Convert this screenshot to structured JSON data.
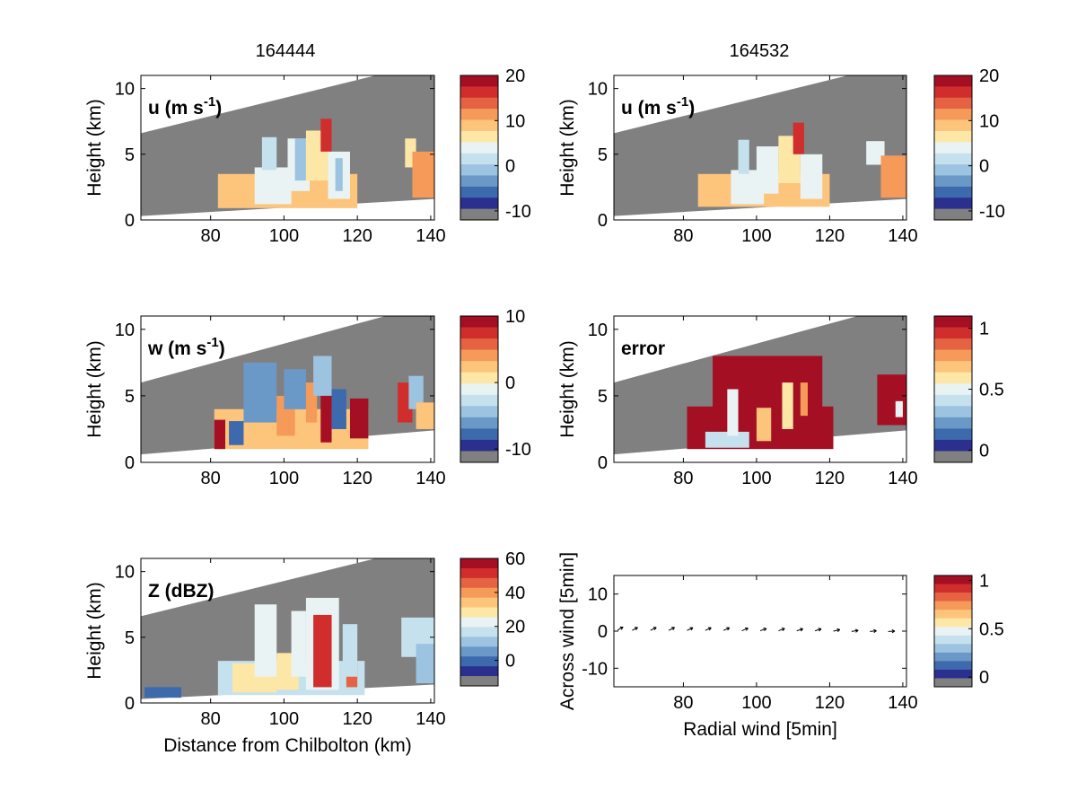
{
  "figure": {
    "column_titles": [
      "164444",
      "164532"
    ],
    "colors": {
      "background_gray": "#808080",
      "palette": [
        "#2b2f8e",
        "#3d69ad",
        "#6a99c8",
        "#9cc3df",
        "#c6e1ee",
        "#eaf3f3",
        "#fde7a6",
        "#fdc47c",
        "#f69a5a",
        "#e56342",
        "#cf2e2c",
        "#a50f23"
      ]
    }
  },
  "chart_data": [
    {
      "id": "u-164444",
      "type": "heatmap",
      "column_title": "164444",
      "panel_label": "u (m s-1)",
      "label_base": "u (m s",
      "label_sup": "-1",
      "label_end": ")",
      "xlabel": "",
      "ylabel": "Height (km)",
      "xlim": [
        61,
        141
      ],
      "ylim": [
        0,
        11
      ],
      "xticks": [
        80,
        100,
        120,
        140
      ],
      "yticks": [
        0,
        5,
        10
      ],
      "colorbar": {
        "range": [
          -12,
          20
        ],
        "ticks": [
          20,
          10,
          0,
          -10
        ],
        "bottom_gray": true
      },
      "beam_top": [
        [
          61,
          6.6
        ],
        [
          141,
          12.1
        ]
      ],
      "beam_bottom": [
        [
          61,
          0.3
        ],
        [
          141,
          1.6
        ]
      ],
      "field": "u",
      "cells": [
        {
          "x": 82,
          "y": 0.9,
          "w": 38,
          "h": 2.6,
          "value": 8
        },
        {
          "x": 92,
          "y": 1.2,
          "w": 10,
          "h": 2.8,
          "value": 3
        },
        {
          "x": 94,
          "y": 3.8,
          "w": 4,
          "h": 2.5,
          "value": 0
        },
        {
          "x": 101,
          "y": 2.2,
          "w": 6,
          "h": 4.0,
          "value": 2
        },
        {
          "x": 103,
          "y": 3.0,
          "w": 3,
          "h": 3.2,
          "value": -2
        },
        {
          "x": 106,
          "y": 3.0,
          "w": 6,
          "h": 3.8,
          "value": 5
        },
        {
          "x": 110,
          "y": 5.2,
          "w": 3,
          "h": 2.5,
          "value": 17
        },
        {
          "x": 112,
          "y": 1.6,
          "w": 6,
          "h": 3.6,
          "value": 2
        },
        {
          "x": 114,
          "y": 2.2,
          "w": 2,
          "h": 2.5,
          "value": -4
        },
        {
          "x": 133,
          "y": 4.0,
          "w": 3,
          "h": 2.2,
          "value": 4
        },
        {
          "x": 135,
          "y": 1.7,
          "w": 6,
          "h": 3.5,
          "value": 11
        }
      ]
    },
    {
      "id": "u-164532",
      "type": "heatmap",
      "column_title": "164532",
      "panel_label": "u (m s-1)",
      "label_base": "u (m s",
      "label_sup": "-1",
      "label_end": ")",
      "xlabel": "",
      "ylabel": "Height (km)",
      "xlim": [
        61,
        141
      ],
      "ylim": [
        0,
        11
      ],
      "xticks": [
        80,
        100,
        120,
        140
      ],
      "yticks": [
        0,
        5,
        10
      ],
      "colorbar": {
        "range": [
          -12,
          20
        ],
        "ticks": [
          20,
          10,
          0,
          -10
        ],
        "bottom_gray": true
      },
      "beam_top": [
        [
          61,
          6.6
        ],
        [
          141,
          12.1
        ]
      ],
      "beam_bottom": [
        [
          61,
          0.3
        ],
        [
          141,
          1.6
        ]
      ],
      "field": "u",
      "cells": [
        {
          "x": 84,
          "y": 1.0,
          "w": 36,
          "h": 2.5,
          "value": 8
        },
        {
          "x": 93,
          "y": 1.2,
          "w": 9,
          "h": 2.6,
          "value": 3
        },
        {
          "x": 95,
          "y": 3.5,
          "w": 3,
          "h": 2.6,
          "value": 0
        },
        {
          "x": 100,
          "y": 2.0,
          "w": 6,
          "h": 3.6,
          "value": 2
        },
        {
          "x": 106,
          "y": 2.8,
          "w": 6,
          "h": 3.6,
          "value": 5
        },
        {
          "x": 110,
          "y": 5.0,
          "w": 3,
          "h": 2.4,
          "value": 17
        },
        {
          "x": 112,
          "y": 1.6,
          "w": 6,
          "h": 3.4,
          "value": 2
        },
        {
          "x": 130,
          "y": 4.2,
          "w": 5,
          "h": 1.8,
          "value": 3
        },
        {
          "x": 134,
          "y": 1.7,
          "w": 7,
          "h": 3.2,
          "value": 11
        }
      ]
    },
    {
      "id": "w-164444",
      "type": "heatmap",
      "column_title": "",
      "panel_label": "w (m s-1)",
      "label_base": "w (m s",
      "label_sup": "-1",
      "label_end": ")",
      "xlabel": "",
      "ylabel": "Height (km)",
      "xlim": [
        61,
        141
      ],
      "ylim": [
        0,
        11
      ],
      "xticks": [
        80,
        100,
        120,
        140
      ],
      "yticks": [
        0,
        5,
        10
      ],
      "colorbar": {
        "range": [
          -12,
          10
        ],
        "ticks": [
          10,
          0,
          -10
        ],
        "bottom_gray": true
      },
      "beam_top": [
        [
          61,
          6.0
        ],
        [
          141,
          12.0
        ]
      ],
      "beam_bottom": [
        [
          61,
          0.6
        ],
        [
          141,
          2.4
        ]
      ],
      "field": "w",
      "cells": [
        {
          "x": 81,
          "y": 1.0,
          "w": 42,
          "h": 3.0,
          "value": 1
        },
        {
          "x": 81,
          "y": 1.0,
          "w": 3,
          "h": 2.2,
          "value": 9
        },
        {
          "x": 85,
          "y": 1.3,
          "w": 4,
          "h": 1.8,
          "value": -10
        },
        {
          "x": 89,
          "y": 3.0,
          "w": 9,
          "h": 4.5,
          "value": -7
        },
        {
          "x": 98,
          "y": 2.0,
          "w": 5,
          "h": 3.0,
          "value": 4
        },
        {
          "x": 100,
          "y": 4.0,
          "w": 6,
          "h": 3.0,
          "value": -8
        },
        {
          "x": 106,
          "y": 3.0,
          "w": 3,
          "h": 3.0,
          "value": 3
        },
        {
          "x": 108,
          "y": 5.0,
          "w": 5,
          "h": 3.0,
          "value": -6
        },
        {
          "x": 110,
          "y": 1.5,
          "w": 3,
          "h": 3.5,
          "value": 9
        },
        {
          "x": 113,
          "y": 2.5,
          "w": 4,
          "h": 3.0,
          "value": -9
        },
        {
          "x": 118,
          "y": 1.8,
          "w": 5,
          "h": 3.0,
          "value": 9
        },
        {
          "x": 131,
          "y": 3.0,
          "w": 4,
          "h": 3.0,
          "value": 7
        },
        {
          "x": 134,
          "y": 4.0,
          "w": 4,
          "h": 2.5,
          "value": -6
        },
        {
          "x": 136,
          "y": 2.5,
          "w": 5,
          "h": 2.0,
          "value": 2
        }
      ]
    },
    {
      "id": "error-164532",
      "type": "heatmap",
      "column_title": "",
      "panel_label": "error",
      "label_base": "error",
      "label_sup": "",
      "label_end": "",
      "xlabel": "",
      "ylabel": "Height (km)",
      "xlim": [
        61,
        141
      ],
      "ylim": [
        0,
        11
      ],
      "xticks": [
        80,
        100,
        120,
        140
      ],
      "yticks": [
        0,
        5,
        10
      ],
      "colorbar": {
        "range": [
          -0.1,
          1.1
        ],
        "ticks": [
          1,
          0.5,
          0
        ],
        "bottom_gray": true
      },
      "beam_top": [
        [
          61,
          6.0
        ],
        [
          141,
          12.0
        ]
      ],
      "beam_bottom": [
        [
          61,
          0.6
        ],
        [
          141,
          2.4
        ]
      ],
      "field": "error",
      "cells": [
        {
          "x": 81,
          "y": 1.0,
          "w": 40,
          "h": 3.2,
          "value": 1.05
        },
        {
          "x": 88,
          "y": 3.5,
          "w": 30,
          "h": 4.5,
          "value": 1.05
        },
        {
          "x": 86,
          "y": 1.1,
          "w": 12,
          "h": 1.2,
          "value": 0.3
        },
        {
          "x": 92,
          "y": 2.0,
          "w": 3,
          "h": 3.5,
          "value": 0.5
        },
        {
          "x": 100,
          "y": 1.6,
          "w": 4,
          "h": 2.5,
          "value": 0.7
        },
        {
          "x": 107,
          "y": 2.5,
          "w": 3,
          "h": 3.5,
          "value": 0.6
        },
        {
          "x": 112,
          "y": 3.5,
          "w": 2,
          "h": 2.5,
          "value": 0.8
        },
        {
          "x": 133,
          "y": 2.8,
          "w": 8,
          "h": 3.8,
          "value": 1.05
        },
        {
          "x": 138,
          "y": 3.4,
          "w": 2,
          "h": 1.2,
          "value": 0.5
        }
      ]
    },
    {
      "id": "z-164444",
      "type": "heatmap",
      "column_title": "",
      "panel_label": "Z (dBZ)",
      "label_base": "Z (dBZ)",
      "label_sup": "",
      "label_end": "",
      "xlabel": "Distance from Chilbolton (km)",
      "ylabel": "Height (km)",
      "xlim": [
        61,
        141
      ],
      "ylim": [
        0,
        11
      ],
      "xticks": [
        80,
        100,
        120,
        140
      ],
      "yticks": [
        0,
        5,
        10
      ],
      "colorbar": {
        "range": [
          -15,
          60
        ],
        "ticks": [
          60,
          40,
          20,
          0
        ],
        "bottom_gray": true
      },
      "beam_top": [
        [
          61,
          6.6
        ],
        [
          141,
          12.1
        ]
      ],
      "beam_bottom": [
        [
          61,
          0.3
        ],
        [
          141,
          1.4
        ]
      ],
      "field": "Z",
      "cells": [
        {
          "x": 82,
          "y": 0.6,
          "w": 40,
          "h": 2.6,
          "value": 15
        },
        {
          "x": 86,
          "y": 0.8,
          "w": 12,
          "h": 2.2,
          "value": 25
        },
        {
          "x": 92,
          "y": 2.0,
          "w": 6,
          "h": 5.5,
          "value": 20
        },
        {
          "x": 98,
          "y": 1.0,
          "w": 6,
          "h": 2.8,
          "value": 28
        },
        {
          "x": 102,
          "y": 2.0,
          "w": 4,
          "h": 5.0,
          "value": 18
        },
        {
          "x": 106,
          "y": 1.0,
          "w": 9,
          "h": 7.0,
          "value": 22
        },
        {
          "x": 108,
          "y": 1.2,
          "w": 5,
          "h": 5.5,
          "value": 48
        },
        {
          "x": 117,
          "y": 1.2,
          "w": 3,
          "h": 2.8,
          "value": 45
        },
        {
          "x": 116,
          "y": 2.0,
          "w": 4,
          "h": 4.0,
          "value": 12
        },
        {
          "x": 132,
          "y": 3.5,
          "w": 9,
          "h": 3.0,
          "value": 10
        },
        {
          "x": 136,
          "y": 1.5,
          "w": 5,
          "h": 3.0,
          "value": 5
        },
        {
          "x": 62,
          "y": 0.4,
          "w": 10,
          "h": 0.8,
          "value": -5
        }
      ]
    },
    {
      "id": "wind-vectors",
      "type": "scatter",
      "column_title": "",
      "panel_label": "",
      "label_base": "",
      "label_sup": "",
      "label_end": "",
      "xlabel": "Radial wind [5min]",
      "ylabel": "Across wind [5min]",
      "xlim": [
        61,
        141
      ],
      "ylim": [
        -15,
        15
      ],
      "xticks": [
        80,
        100,
        120,
        140
      ],
      "yticks": [
        -10,
        0,
        10
      ],
      "colorbar": {
        "range": [
          -0.1,
          1.05
        ],
        "ticks": [
          1,
          0.5,
          0
        ],
        "bottom_gray": true
      },
      "vectors": [
        {
          "x": 62,
          "y": 0.3,
          "dx": 1.5,
          "dy": 0.8
        },
        {
          "x": 66,
          "y": 0.2,
          "dx": 1.5,
          "dy": 0.8
        },
        {
          "x": 71,
          "y": 0.2,
          "dx": 1.6,
          "dy": 0.8
        },
        {
          "x": 76,
          "y": 0.2,
          "dx": 1.6,
          "dy": 0.8
        },
        {
          "x": 81,
          "y": 0.2,
          "dx": 1.6,
          "dy": 0.7
        },
        {
          "x": 86,
          "y": 0.2,
          "dx": 1.6,
          "dy": 0.7
        },
        {
          "x": 91,
          "y": 0.2,
          "dx": 1.6,
          "dy": 0.7
        },
        {
          "x": 96,
          "y": 0.1,
          "dx": 1.7,
          "dy": 0.7
        },
        {
          "x": 101,
          "y": 0.1,
          "dx": 1.7,
          "dy": 0.6
        },
        {
          "x": 106,
          "y": 0.1,
          "dx": 1.7,
          "dy": 0.6
        },
        {
          "x": 111,
          "y": 0.1,
          "dx": 1.7,
          "dy": 0.5
        },
        {
          "x": 116,
          "y": 0.1,
          "dx": 1.7,
          "dy": 0.5
        },
        {
          "x": 121,
          "y": 0.0,
          "dx": 1.8,
          "dy": 0.4
        },
        {
          "x": 126,
          "y": -0.1,
          "dx": 1.8,
          "dy": 0.3
        },
        {
          "x": 131,
          "y": -0.1,
          "dx": 1.8,
          "dy": 0.2
        },
        {
          "x": 136,
          "y": -0.1,
          "dx": 1.8,
          "dy": 0.1
        }
      ]
    }
  ]
}
